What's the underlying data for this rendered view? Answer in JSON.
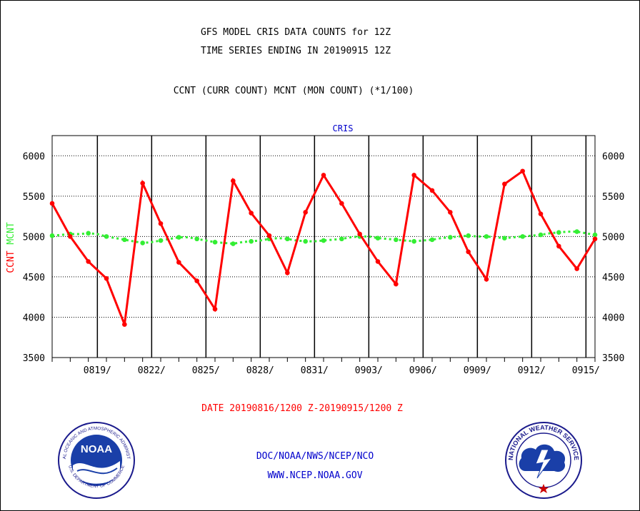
{
  "header": {
    "title_line1": "GFS MODEL CRIS DATA COUNTS for 12Z",
    "title_line2": "TIME SERIES ENDING IN 20190915 12Z",
    "subtitle": "CCNT (CURR COUNT) MCNT (MON COUNT) (*1/100)"
  },
  "chart_data": {
    "type": "line",
    "title": "CRIS",
    "ylabel_ccnt": "CCNT",
    "ylabel_mcnt": "MCNT",
    "ylim": [
      3500,
      6250
    ],
    "yticks": [
      3500,
      4000,
      4500,
      5000,
      5500,
      6000
    ],
    "grid": true,
    "xlim": [
      0,
      60
    ],
    "xtick_labels": [
      "0819/",
      "0822/",
      "0825/",
      "0828/",
      "0831/",
      "0903/",
      "0906/",
      "0909/",
      "0912/",
      "0915/"
    ],
    "xtick_positions": [
      5,
      11,
      17,
      23,
      29,
      35,
      41,
      47,
      53,
      59
    ],
    "series": [
      {
        "name": "CCNT",
        "color": "#ff0000",
        "x": [
          0,
          2,
          4,
          6,
          8,
          10,
          12,
          14,
          16,
          18,
          20,
          22,
          24,
          26,
          28,
          30,
          32,
          34,
          36,
          38,
          40,
          42,
          44,
          46,
          48,
          50,
          52,
          54,
          56,
          58,
          60
        ],
        "values": [
          5410,
          5000,
          4690,
          4480,
          3910,
          5660,
          5160,
          4680,
          4450,
          4100,
          5690,
          5290,
          5010,
          4550,
          5300,
          5760,
          5410,
          5030,
          4690,
          4410,
          5760,
          5570,
          5300,
          4810,
          4470,
          5650,
          5810,
          5280,
          4880,
          4600,
          4970
        ]
      },
      {
        "name": "MCNT",
        "color": "#33ee33",
        "x": [
          0,
          1,
          2,
          3,
          4,
          5,
          6,
          7,
          8,
          9,
          10,
          11,
          12,
          13,
          14,
          15,
          16,
          17,
          18,
          19,
          20,
          21,
          22,
          23,
          24,
          25,
          26,
          27,
          28,
          29,
          30,
          31,
          32,
          33,
          34,
          35,
          36,
          37,
          38,
          39,
          40,
          41,
          42,
          43,
          44,
          45,
          46,
          47,
          48,
          49,
          50,
          51,
          52,
          53,
          54,
          55,
          56,
          57,
          58,
          59,
          60
        ],
        "values": [
          5010,
          5020,
          5030,
          5030,
          5040,
          5030,
          5000,
          4980,
          4960,
          4940,
          4920,
          4930,
          4950,
          4970,
          4990,
          4990,
          4970,
          4950,
          4930,
          4920,
          4910,
          4930,
          4940,
          4950,
          4970,
          4980,
          4970,
          4950,
          4940,
          4940,
          4950,
          4960,
          4970,
          4990,
          5000,
          5000,
          4980,
          4970,
          4960,
          4950,
          4940,
          4950,
          4960,
          4980,
          4990,
          5000,
          5010,
          5000,
          5000,
          4990,
          4980,
          4990,
          5000,
          5010,
          5020,
          5040,
          5050,
          5060,
          5060,
          5040,
          5020
        ]
      }
    ]
  },
  "footer": {
    "date_range": "DATE 20190816/1200 Z-20190915/1200 Z",
    "org_line": "DOC/NOAA/NWS/NCEP/NCO",
    "url_line": "WWW.NCEP.NOAA.GOV"
  },
  "logos": {
    "noaa_text": "NOAA",
    "noaa_ring": "NATIONAL OCEANIC AND ATMOSPHERIC ADMINISTRATION",
    "noaa_ring_bottom": "U.S. DEPARTMENT OF COMMERCE",
    "nws_ring": "NATIONAL WEATHER SERVICE"
  },
  "colors": {
    "ccnt": "#ff0000",
    "mcnt": "#33ee33",
    "title_blue": "#0000cc",
    "footer_red": "#ff0000",
    "footer_blue": "#0000cc"
  }
}
